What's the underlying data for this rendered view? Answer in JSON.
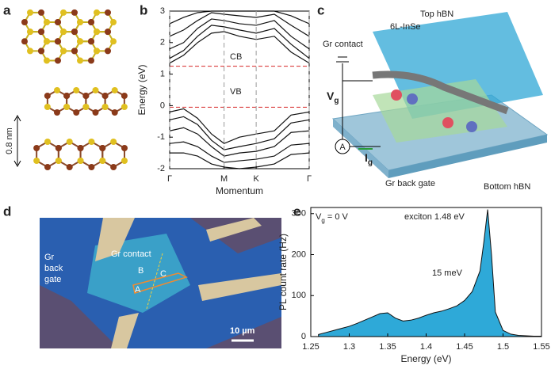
{
  "panel_labels": [
    "a",
    "b",
    "c",
    "d",
    "e"
  ],
  "panel_a": {
    "scale_label": "0.8 nm"
  },
  "panel_c": {
    "top_hbn": "Top hBN",
    "inse": "6L-InSe",
    "gr_contact": "Gr contact",
    "vg": {
      "text": "V",
      "sub": "g"
    },
    "ig": {
      "text": "I",
      "sub": "g"
    },
    "meter": "A",
    "back_gate": "Gr back gate",
    "bottom_hbn": "Bottom hBN"
  },
  "panel_d": {
    "gr_contact": "Gr contact",
    "back_gate": [
      "Gr",
      "back",
      "gate"
    ],
    "points": [
      "B",
      "C",
      "A"
    ],
    "scale_bar": "10 µm"
  },
  "chart_data": [
    {
      "type": "line",
      "ylabel": "Energy (eV)",
      "xlabel": "Momentum",
      "xlim": [
        0,
        1
      ],
      "ylim": [
        -2,
        3
      ],
      "xticks": [
        {
          "value": 0,
          "label": "Γ"
        },
        {
          "value": 0.39,
          "label": "M"
        },
        {
          "value": 0.62,
          "label": "K"
        },
        {
          "value": 1,
          "label": "Γ"
        }
      ],
      "yticks": [
        -2,
        -1,
        0,
        1,
        2,
        3
      ],
      "xgrid": true,
      "hlines": [
        1.25,
        -0.05
      ],
      "hline_color": "#d62728",
      "annotations": [
        "CB",
        "VB"
      ],
      "x": [
        0,
        0.1,
        0.2,
        0.3,
        0.39,
        0.5,
        0.62,
        0.75,
        0.87,
        1
      ],
      "series": [
        {
          "color": "#111",
          "values": [
            1.35,
            1.6,
            2.0,
            2.3,
            2.35,
            2.2,
            2.1,
            2.2,
            1.7,
            1.35
          ]
        },
        {
          "color": "#111",
          "values": [
            1.5,
            1.75,
            2.2,
            2.55,
            2.5,
            2.4,
            2.3,
            2.45,
            1.95,
            1.5
          ]
        },
        {
          "color": "#111",
          "values": [
            1.8,
            2.0,
            2.45,
            2.75,
            2.7,
            2.6,
            2.55,
            2.7,
            2.2,
            1.8
          ]
        },
        {
          "color": "#111",
          "values": [
            2.2,
            2.4,
            2.7,
            2.95,
            2.9,
            2.85,
            2.8,
            2.9,
            2.55,
            2.2
          ]
        },
        {
          "color": "#111",
          "values": [
            2.6,
            2.8,
            2.95,
            3.0,
            3.0,
            3.0,
            3.0,
            3.0,
            2.85,
            2.6
          ]
        },
        {
          "color": "#111",
          "values": [
            -0.2,
            -0.1,
            -0.4,
            -0.9,
            -1.2,
            -1.0,
            -0.9,
            -0.8,
            -0.3,
            -0.2
          ]
        },
        {
          "color": "#111",
          "values": [
            -0.45,
            -0.35,
            -0.6,
            -1.1,
            -1.4,
            -1.3,
            -1.2,
            -1.05,
            -0.55,
            -0.45
          ]
        },
        {
          "color": "#111",
          "values": [
            -0.8,
            -0.7,
            -0.9,
            -1.3,
            -1.6,
            -1.5,
            -1.45,
            -1.3,
            -0.85,
            -0.8
          ]
        },
        {
          "color": "#111",
          "values": [
            -1.2,
            -1.15,
            -1.3,
            -1.6,
            -1.8,
            -1.75,
            -1.7,
            -1.6,
            -1.25,
            -1.2
          ]
        },
        {
          "color": "#111",
          "values": [
            -1.5,
            -1.5,
            -1.6,
            -1.85,
            -1.95,
            -2.0,
            -1.95,
            -1.85,
            -1.55,
            -1.5
          ]
        }
      ]
    },
    {
      "type": "area",
      "ylabel": "PL count rate (Hz)",
      "xlabel": "Energy (eV)",
      "xlim": [
        1.25,
        1.55
      ],
      "ylim": [
        0,
        315
      ],
      "xticks": [
        1.25,
        1.3,
        1.35,
        1.4,
        1.45,
        1.5,
        1.55
      ],
      "yticks": [
        0,
        100,
        200,
        300
      ],
      "color": "#2ea9d8",
      "edge_color": "#111",
      "annotation_vg": {
        "text": "V",
        "sub": "g",
        "rest": " = 0 V"
      },
      "annotations": [
        "exciton 1.48 eV",
        "15 meV"
      ],
      "x": [
        1.26,
        1.27,
        1.28,
        1.29,
        1.3,
        1.31,
        1.32,
        1.33,
        1.34,
        1.35,
        1.36,
        1.37,
        1.38,
        1.39,
        1.4,
        1.41,
        1.42,
        1.43,
        1.44,
        1.45,
        1.46,
        1.47,
        1.475,
        1.48,
        1.485,
        1.49,
        1.5,
        1.51,
        1.52,
        1.53,
        1.54,
        1.55
      ],
      "values": [
        5,
        10,
        15,
        20,
        25,
        32,
        40,
        48,
        56,
        58,
        45,
        38,
        40,
        45,
        52,
        58,
        62,
        68,
        75,
        88,
        110,
        160,
        230,
        310,
        200,
        60,
        15,
        6,
        3,
        2,
        1,
        1
      ]
    }
  ]
}
